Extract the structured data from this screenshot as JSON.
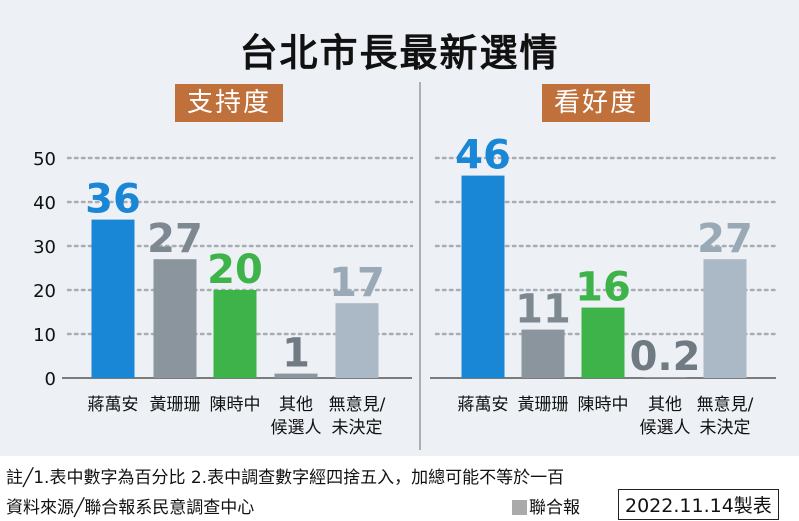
{
  "title": "台北市長最新選情",
  "colors": {
    "blue": "#1a86d6",
    "darkgray": "#8b959d",
    "green": "#3db34a",
    "lightgray": "#aab9c5",
    "panel_title": "#c0703a"
  },
  "chart_data": [
    {
      "type": "bar",
      "title": "支持度",
      "categories": [
        [
          "蔣萬安"
        ],
        [
          "黃珊珊"
        ],
        [
          "陳時中"
        ],
        [
          "其他",
          "候選人"
        ],
        [
          "無意見/",
          "未決定"
        ]
      ],
      "values": [
        36,
        27,
        20,
        1,
        17
      ],
      "value_labels": [
        "36",
        "27",
        "20",
        "1",
        "17"
      ],
      "ylim": [
        0,
        50
      ],
      "yticks": [
        "0",
        "10",
        "20",
        "30",
        "40",
        "50"
      ],
      "grid": true
    },
    {
      "type": "bar",
      "title": "看好度",
      "categories": [
        [
          "蔣萬安"
        ],
        [
          "黃珊珊"
        ],
        [
          "陳時中"
        ],
        [
          "其他",
          "候選人"
        ],
        [
          "無意見/",
          "未決定"
        ]
      ],
      "values": [
        46,
        11,
        16,
        0.2,
        27
      ],
      "value_labels": [
        "46",
        "11",
        "16",
        "0.2",
        "27"
      ],
      "ylim": [
        0,
        50
      ],
      "grid": true
    }
  ],
  "footer": {
    "note": "註╱1.表中數字為百分比  2.表中調查數字經四捨五入，加總可能不等於一百",
    "source": "資料來源╱聯合報系民意調查中心",
    "legend": "聯合報",
    "date": "2022.11.14製表"
  }
}
